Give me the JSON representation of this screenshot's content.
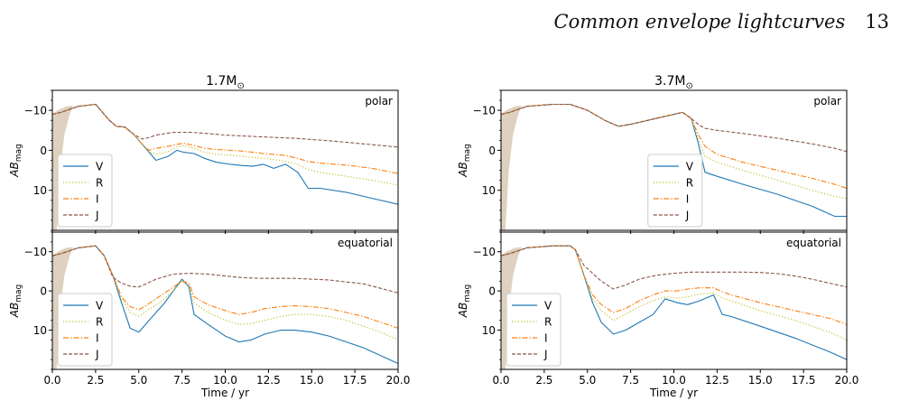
{
  "header": {
    "title": "Common envelope lightcurves",
    "page_number": "13"
  },
  "chart_data": [
    {
      "type": "line",
      "title": "1.7M",
      "title_sub": "⊙",
      "panel_label": "polar",
      "ylabel": "AB",
      "ylabel_sub": "mag",
      "xlim": [
        0,
        20
      ],
      "ylim": [
        20,
        -15
      ],
      "y_inverted": true,
      "xticks": [
        0.0,
        2.5,
        5.0,
        7.5,
        10.0,
        12.5,
        15.0,
        17.5,
        20.0
      ],
      "yticks": [
        -10,
        0,
        10
      ],
      "legend_position": "lower-left",
      "series": [
        {
          "name": "V",
          "color": "#1f77b4",
          "style": "solid",
          "x": [
            0,
            0.5,
            1.5,
            2.5,
            3.0,
            3.3,
            3.7,
            4.2,
            4.7,
            5.2,
            5.6,
            6.0,
            6.7,
            7.2,
            7.6,
            8.2,
            8.8,
            9.5,
            10.3,
            11.0,
            11.6,
            12.2,
            12.8,
            13.5,
            14.2,
            14.8,
            15.5,
            17.0,
            18.5,
            20.0
          ],
          "y": [
            -9,
            -9.5,
            -11,
            -11.5,
            -9,
            -7.5,
            -6,
            -5.8,
            -4,
            -1.5,
            0.5,
            2.5,
            1.5,
            0,
            0.5,
            0.8,
            2.0,
            3.0,
            3.5,
            3.8,
            4.0,
            3.5,
            4.5,
            3.5,
            5.5,
            9.5,
            9.5,
            10.5,
            12.0,
            13.5
          ]
        },
        {
          "name": "R",
          "color": "#bcbd22",
          "style": "dotted",
          "x": [
            0,
            0.5,
            1.5,
            2.5,
            3.0,
            3.3,
            3.7,
            4.2,
            4.7,
            5.2,
            5.6,
            6.0,
            6.7,
            7.2,
            7.6,
            8.2,
            8.8,
            9.5,
            10.3,
            11.0,
            11.6,
            12.2,
            12.8,
            13.5,
            14.2,
            14.8,
            15.5,
            17.0,
            18.5,
            20.0
          ],
          "y": [
            -9,
            -9.5,
            -11,
            -11.5,
            -9,
            -7.5,
            -6,
            -5.8,
            -4,
            -1.5,
            0.3,
            1.0,
            0.3,
            -0.8,
            -1.2,
            -0.5,
            0.5,
            1.0,
            1.2,
            1.5,
            1.8,
            2.0,
            2.3,
            2.8,
            3.5,
            4.8,
            5.5,
            6.5,
            7.5,
            8.7
          ]
        },
        {
          "name": "I",
          "color": "#ff7f0e",
          "style": "dashdot",
          "x": [
            0,
            0.5,
            1.5,
            2.5,
            3.0,
            3.3,
            3.7,
            4.2,
            4.7,
            5.2,
            5.6,
            6.0,
            6.7,
            7.2,
            7.6,
            8.2,
            8.8,
            9.5,
            10.3,
            11.0,
            11.6,
            12.2,
            12.8,
            13.5,
            14.2,
            14.8,
            15.5,
            17.0,
            18.5,
            20.0
          ],
          "y": [
            -9,
            -9.5,
            -11,
            -11.5,
            -9,
            -7.5,
            -6,
            -5.8,
            -4,
            -1.5,
            0,
            -0.5,
            -1,
            -1.5,
            -1.8,
            -1.2,
            -0.5,
            -0.2,
            0,
            0.2,
            0.5,
            0.8,
            1.0,
            1.3,
            2.0,
            2.8,
            3.2,
            3.7,
            4.5,
            5.8
          ]
        },
        {
          "name": "J",
          "color": "#8c564b",
          "style": "dashed",
          "x": [
            0,
            0.5,
            1.5,
            2.5,
            3.0,
            3.3,
            3.7,
            4.2,
            4.7,
            5.2,
            5.6,
            6.0,
            7.0,
            8.0,
            9.0,
            10.0,
            12.0,
            14.0,
            16.0,
            18.0,
            20.0
          ],
          "y": [
            -9,
            -9.5,
            -11,
            -11.5,
            -9,
            -7.5,
            -6,
            -5.8,
            -4,
            -2.8,
            -3.2,
            -3.8,
            -4.5,
            -4.5,
            -4.2,
            -3.8,
            -3.4,
            -3.0,
            -2.4,
            -1.6,
            -0.8
          ]
        }
      ]
    },
    {
      "type": "line",
      "title": "",
      "panel_label": "equatorial",
      "xlabel": "Time / yr",
      "ylabel": "AB",
      "ylabel_sub": "mag",
      "xlim": [
        0,
        20
      ],
      "ylim": [
        20,
        -15
      ],
      "y_inverted": true,
      "xticks": [
        0.0,
        2.5,
        5.0,
        7.5,
        10.0,
        12.5,
        15.0,
        17.5,
        20.0
      ],
      "yticks": [
        -10,
        0,
        10
      ],
      "legend_position": "lower-left",
      "series": [
        {
          "name": "V",
          "color": "#1f77b4",
          "style": "solid",
          "x": [
            0,
            0.5,
            1.5,
            2.5,
            3.0,
            3.5,
            4.0,
            4.5,
            5.0,
            5.5,
            6.0,
            6.5,
            7.0,
            7.5,
            7.9,
            8.2,
            9.0,
            10.0,
            10.8,
            11.5,
            12.3,
            13.2,
            14.0,
            15.0,
            16.0,
            17.0,
            18.0,
            19.0,
            20.0
          ],
          "y": [
            -9,
            -9.5,
            -11,
            -11.5,
            -9,
            -4,
            3,
            9.5,
            10.5,
            8,
            5.5,
            3,
            0,
            -3,
            -1,
            6,
            8.5,
            11.5,
            13,
            12.5,
            11,
            10,
            10,
            10.5,
            11.5,
            13,
            14.5,
            16.5,
            18.5
          ]
        },
        {
          "name": "R",
          "color": "#bcbd22",
          "style": "dotted",
          "x": [
            0,
            0.5,
            1.5,
            2.5,
            3.0,
            3.5,
            4.0,
            4.5,
            5.0,
            5.5,
            6.0,
            6.5,
            7.0,
            7.5,
            7.9,
            8.2,
            9.0,
            10.0,
            10.8,
            11.5,
            12.3,
            13.2,
            14.0,
            15.0,
            16.0,
            17.0,
            18.0,
            19.0,
            20.0
          ],
          "y": [
            -9,
            -9.5,
            -11,
            -11.5,
            -9,
            -4,
            2,
            5.5,
            6.5,
            5,
            3.5,
            2,
            0,
            -2.5,
            -1.5,
            3,
            5.5,
            7.5,
            8.5,
            8.3,
            7.5,
            6.5,
            6,
            6,
            6.5,
            7.5,
            9,
            10.5,
            12.5
          ]
        },
        {
          "name": "I",
          "color": "#ff7f0e",
          "style": "dashdot",
          "x": [
            0,
            0.5,
            1.5,
            2.5,
            3.0,
            3.5,
            4.0,
            4.5,
            5.0,
            5.5,
            6.0,
            6.5,
            7.0,
            7.5,
            7.9,
            8.2,
            9.0,
            10.0,
            10.8,
            11.5,
            12.3,
            13.2,
            14.0,
            15.0,
            16.0,
            17.0,
            18.0,
            19.0,
            20.0
          ],
          "y": [
            -9,
            -9.5,
            -11,
            -11.5,
            -9,
            -4,
            1.5,
            4,
            4.8,
            3.5,
            2,
            0.5,
            -1,
            -2.5,
            -2,
            1.5,
            3.5,
            5,
            6,
            5.5,
            4.5,
            4,
            3.8,
            4,
            4.5,
            5.5,
            6.5,
            8,
            9.5
          ]
        },
        {
          "name": "J",
          "color": "#8c564b",
          "style": "dashed",
          "x": [
            0,
            0.5,
            1.5,
            2.5,
            3.0,
            3.5,
            4.0,
            4.5,
            5.0,
            5.5,
            6.0,
            7.0,
            8.0,
            9.0,
            10.0,
            11.0,
            12.0,
            13.0,
            14.0,
            16.0,
            18.0,
            20.0
          ],
          "y": [
            -9,
            -9.5,
            -11,
            -11.5,
            -9,
            -3.5,
            -2,
            -1.2,
            -1.0,
            -2.0,
            -3.0,
            -4.3,
            -4.5,
            -4.3,
            -3.8,
            -3.4,
            -3.2,
            -3.2,
            -3.2,
            -2.8,
            -1.8,
            0.5
          ]
        }
      ]
    },
    {
      "type": "line",
      "title": "3.7M",
      "title_sub": "⊙",
      "panel_label": "polar",
      "ylabel": "AB",
      "ylabel_sub": "mag",
      "xlim": [
        0,
        20
      ],
      "ylim": [
        20,
        -15
      ],
      "y_inverted": true,
      "xticks": [
        0.0,
        2.5,
        5.0,
        7.5,
        10.0,
        12.5,
        15.0,
        17.5,
        20.0
      ],
      "yticks": [
        -10,
        0,
        10
      ],
      "legend_position": "lower-right",
      "series": [
        {
          "name": "V",
          "color": "#1f77b4",
          "style": "solid",
          "x": [
            0,
            0.5,
            1.5,
            3.0,
            4.0,
            5.0,
            6.0,
            6.8,
            7.5,
            8.5,
            9.5,
            10.5,
            11.0,
            11.4,
            11.8,
            12.5,
            14.0,
            16.0,
            18.0,
            19.3,
            20.0
          ],
          "y": [
            -9,
            -9.5,
            -11,
            -11.5,
            -11.5,
            -10,
            -7.5,
            -6,
            -6.5,
            -7.5,
            -8.5,
            -9.5,
            -8,
            -2,
            5.5,
            6.5,
            8.5,
            11,
            14,
            16.5,
            16.5
          ]
        },
        {
          "name": "R",
          "color": "#bcbd22",
          "style": "dotted",
          "x": [
            0,
            0.5,
            1.5,
            3.0,
            4.0,
            5.0,
            6.0,
            6.8,
            7.5,
            8.5,
            9.5,
            10.5,
            11.0,
            11.4,
            11.8,
            12.5,
            14.0,
            16.0,
            18.0,
            19.3,
            20.0
          ],
          "y": [
            -9,
            -9.5,
            -11,
            -11.5,
            -11.5,
            -10,
            -7.5,
            -6,
            -6.5,
            -7.5,
            -8.5,
            -9.5,
            -8,
            -3,
            1.5,
            3,
            5,
            7.5,
            10,
            11.5,
            12
          ]
        },
        {
          "name": "I",
          "color": "#ff7f0e",
          "style": "dashdot",
          "x": [
            0,
            0.5,
            1.5,
            3.0,
            4.0,
            5.0,
            6.0,
            6.8,
            7.5,
            8.5,
            9.5,
            10.5,
            11.0,
            11.4,
            11.8,
            12.5,
            14.0,
            16.0,
            18.0,
            19.3,
            20.0
          ],
          "y": [
            -9,
            -9.5,
            -11,
            -11.5,
            -11.5,
            -10,
            -7.5,
            -6,
            -6.5,
            -7.5,
            -8.5,
            -9.5,
            -8,
            -4,
            -1,
            1,
            3,
            5,
            7,
            8.5,
            9.5
          ]
        },
        {
          "name": "J",
          "color": "#8c564b",
          "style": "dashed",
          "x": [
            0,
            0.5,
            1.5,
            3.0,
            4.0,
            5.0,
            6.0,
            6.8,
            7.5,
            8.5,
            9.5,
            10.5,
            11.0,
            11.4,
            11.8,
            12.5,
            14.0,
            16.0,
            18.0,
            19.3,
            20.0
          ],
          "y": [
            -9,
            -9.5,
            -11,
            -11.5,
            -11.5,
            -10,
            -7.5,
            -6,
            -6.5,
            -7.5,
            -8.5,
            -9.5,
            -8,
            -6.5,
            -5.5,
            -5,
            -4.2,
            -3,
            -1.6,
            -0.5,
            0.3
          ]
        }
      ]
    },
    {
      "type": "line",
      "title": "",
      "panel_label": "equatorial",
      "xlabel": "Time / yr",
      "ylabel": "AB",
      "ylabel_sub": "mag",
      "xlim": [
        0,
        20
      ],
      "ylim": [
        20,
        -15
      ],
      "y_inverted": true,
      "xticks": [
        0.0,
        2.5,
        5.0,
        7.5,
        10.0,
        12.5,
        15.0,
        17.5,
        20.0
      ],
      "yticks": [
        -10,
        0,
        10
      ],
      "legend_position": "lower-left",
      "series": [
        {
          "name": "V",
          "color": "#1f77b4",
          "style": "solid",
          "x": [
            0,
            0.5,
            1.5,
            3.0,
            4.0,
            4.3,
            4.8,
            5.3,
            5.8,
            6.5,
            7.2,
            8.0,
            8.8,
            9.5,
            10.2,
            10.8,
            11.5,
            12.3,
            12.8,
            13.3,
            15.0,
            17.0,
            19.0,
            20.0
          ],
          "y": [
            -9,
            -9.5,
            -11,
            -11.5,
            -11.5,
            -10.5,
            -4,
            3,
            8,
            11,
            10,
            8,
            6,
            2,
            3,
            3.5,
            2.5,
            1,
            6,
            6.5,
            9,
            12,
            15.5,
            17.5
          ]
        },
        {
          "name": "R",
          "color": "#bcbd22",
          "style": "dotted",
          "x": [
            0,
            0.5,
            1.5,
            3.0,
            4.0,
            4.3,
            4.8,
            5.3,
            5.8,
            6.5,
            7.2,
            8.0,
            8.8,
            9.5,
            10.2,
            10.8,
            11.5,
            12.3,
            12.8,
            13.3,
            15.0,
            17.0,
            19.0,
            20.0
          ],
          "y": [
            -9,
            -9.5,
            -11,
            -11.5,
            -11.5,
            -10.5,
            -4,
            2,
            5,
            7.5,
            6,
            4,
            2.5,
            1.5,
            1.8,
            1.5,
            0.8,
            0.5,
            1.8,
            2.5,
            5,
            7.5,
            10.5,
            12.5
          ]
        },
        {
          "name": "I",
          "color": "#ff7f0e",
          "style": "dashdot",
          "x": [
            0,
            0.5,
            1.5,
            3.0,
            4.0,
            4.3,
            4.8,
            5.3,
            5.8,
            6.5,
            7.2,
            8.0,
            8.8,
            9.5,
            10.2,
            10.8,
            11.5,
            12.3,
            12.8,
            13.3,
            15.0,
            17.0,
            19.0,
            20.0
          ],
          "y": [
            -9,
            -9.5,
            -11,
            -11.5,
            -11.5,
            -10.5,
            -4,
            1,
            3.5,
            5.5,
            4.5,
            2.5,
            1,
            0,
            0,
            -0.5,
            -0.8,
            -0.8,
            0.2,
            1.0,
            3,
            5,
            7,
            8.5
          ]
        },
        {
          "name": "J",
          "color": "#8c564b",
          "style": "dashed",
          "x": [
            0,
            0.5,
            1.5,
            3.0,
            4.0,
            4.3,
            4.8,
            5.3,
            5.8,
            6.5,
            7.2,
            8.0,
            9.0,
            10.0,
            11.0,
            12.0,
            13.0,
            14.0,
            15.0,
            16.0,
            17.0,
            18.0,
            19.0,
            20.0
          ],
          "y": [
            -9,
            -9.5,
            -11,
            -11.5,
            -11.5,
            -10.5,
            -6.5,
            -4.5,
            -2.5,
            -0.5,
            -1.5,
            -3,
            -4,
            -4.5,
            -4.8,
            -4.8,
            -4.8,
            -4.8,
            -4.7,
            -4.4,
            -3.8,
            -3,
            -2,
            -1
          ]
        }
      ]
    }
  ]
}
